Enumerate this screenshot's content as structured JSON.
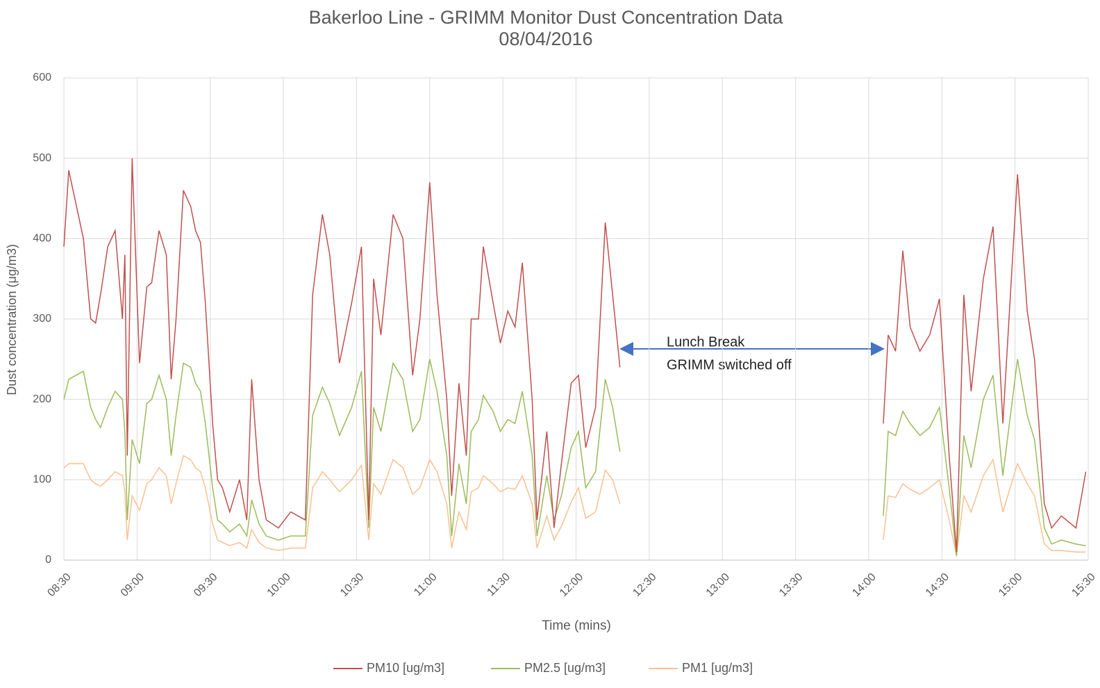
{
  "chart_data": {
    "type": "line",
    "title": "Bakerloo Line - GRIMM Monitor Dust Concentration Data",
    "subtitle": "08/04/2016",
    "x_label": "Time (mins)",
    "y_label": "Dust concentration  (μg/m3)",
    "annotation": [
      "Lunch Break",
      "GRIMM switched off"
    ],
    "x": [
      "08:30",
      "08:32",
      "08:38",
      "08:41",
      "08:43",
      "08:45",
      "08:48",
      "08:51",
      "08:54",
      "08:55",
      "08:56",
      "08:58",
      "09:01",
      "09:04",
      "09:06",
      "09:09",
      "09:12",
      "09:14",
      "09:16",
      "09:19",
      "09:22",
      "09:24",
      "09:26",
      "09:28",
      "09:31",
      "09:33",
      "09:35",
      "09:38",
      "09:42",
      "09:45",
      "09:47",
      "09:50",
      "09:53",
      "09:58",
      "10:03",
      "10:09",
      "10:12",
      "10:16",
      "10:19",
      "10:23",
      "10:28",
      "10:32",
      "10:35",
      "10:37",
      "10:40",
      "10:45",
      "10:49",
      "10:53",
      "10:56",
      "11:00",
      "11:03",
      "11:07",
      "11:09",
      "11:12",
      "11:15",
      "11:17",
      "11:20",
      "11:22",
      "11:26",
      "11:29",
      "11:32",
      "11:35",
      "11:38",
      "11:42",
      "11:44",
      "11:48",
      "11:51",
      "11:54",
      "11:58",
      "12:01",
      "12:04",
      "12:08",
      "12:12",
      "12:15",
      "12:18",
      "13:00",
      "14:06",
      "14:08",
      "14:11",
      "14:14",
      "14:17",
      "14:21",
      "14:25",
      "14:29",
      "14:33",
      "14:36",
      "14:39",
      "14:42",
      "14:47",
      "14:51",
      "14:55",
      "15:01",
      "15:05",
      "15:08",
      "15:12",
      "15:15",
      "15:19",
      "15:25",
      "15:29"
    ],
    "series": [
      {
        "name": "PM10 [ug/m3]",
        "color": "#c0504d",
        "values": [
          390,
          485,
          400,
          300,
          295,
          330,
          390,
          410,
          300,
          380,
          130,
          500,
          245,
          340,
          345,
          410,
          380,
          225,
          300,
          460,
          440,
          410,
          395,
          320,
          170,
          100,
          90,
          60,
          100,
          50,
          225,
          100,
          50,
          40,
          60,
          50,
          330,
          430,
          380,
          245,
          320,
          390,
          50,
          350,
          280,
          430,
          400,
          230,
          300,
          470,
          330,
          200,
          80,
          220,
          130,
          300,
          300,
          390,
          320,
          270,
          310,
          290,
          370,
          200,
          50,
          160,
          40,
          120,
          220,
          230,
          140,
          190,
          420,
          330,
          240,
          null,
          170,
          280,
          260,
          385,
          290,
          260,
          280,
          325,
          130,
          10,
          330,
          210,
          350,
          415,
          170,
          480,
          310,
          250,
          70,
          40,
          55,
          40,
          110
        ]
      },
      {
        "name": "PM2.5 [ug/m3]",
        "color": "#9bbb59",
        "values": [
          200,
          225,
          235,
          190,
          175,
          165,
          190,
          210,
          200,
          160,
          50,
          150,
          120,
          195,
          200,
          230,
          200,
          130,
          180,
          245,
          240,
          220,
          210,
          170,
          90,
          50,
          45,
          35,
          45,
          30,
          75,
          45,
          30,
          25,
          30,
          30,
          180,
          215,
          195,
          155,
          190,
          235,
          40,
          190,
          160,
          245,
          225,
          160,
          175,
          250,
          210,
          130,
          30,
          120,
          70,
          160,
          175,
          205,
          185,
          160,
          175,
          170,
          210,
          130,
          30,
          105,
          50,
          80,
          140,
          160,
          90,
          110,
          225,
          190,
          135,
          null,
          55,
          160,
          155,
          185,
          170,
          155,
          165,
          190,
          90,
          5,
          155,
          115,
          200,
          230,
          105,
          250,
          180,
          150,
          40,
          20,
          25,
          20,
          18
        ]
      },
      {
        "name": "PM1 [ug/m3]",
        "color": "#fac090",
        "values": [
          115,
          120,
          120,
          100,
          95,
          92,
          100,
          110,
          105,
          85,
          25,
          80,
          62,
          95,
          100,
          115,
          105,
          70,
          95,
          130,
          125,
          115,
          110,
          90,
          45,
          25,
          22,
          18,
          22,
          15,
          38,
          22,
          15,
          12,
          15,
          15,
          90,
          110,
          100,
          85,
          100,
          118,
          25,
          95,
          82,
          125,
          115,
          82,
          90,
          125,
          110,
          70,
          15,
          60,
          38,
          85,
          90,
          105,
          95,
          85,
          90,
          88,
          105,
          70,
          15,
          55,
          25,
          42,
          72,
          90,
          52,
          60,
          112,
          100,
          70,
          null,
          25,
          80,
          78,
          95,
          88,
          82,
          90,
          100,
          50,
          5,
          80,
          60,
          105,
          125,
          60,
          120,
          95,
          80,
          20,
          12,
          12,
          10,
          10
        ]
      }
    ],
    "xlim": [
      "08:30",
      "15:30"
    ],
    "xticks": [
      "08:30",
      "09:00",
      "09:30",
      "10:00",
      "10:30",
      "11:00",
      "11:30",
      "12:00",
      "12:30",
      "13:00",
      "13:30",
      "14:00",
      "14:30",
      "15:00",
      "15:30"
    ],
    "ylim": [
      0,
      600
    ],
    "yticks": [
      0,
      100,
      200,
      300,
      400,
      500,
      600
    ],
    "grid": true,
    "legend": "bottom"
  }
}
